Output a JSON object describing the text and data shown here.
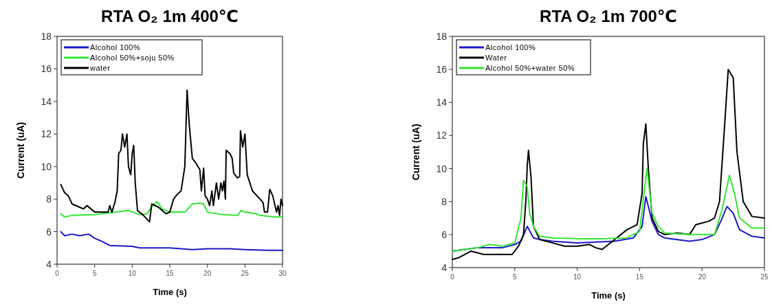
{
  "chart_data": [
    {
      "type": "line",
      "title": "RTA O₂ 1m 400℃",
      "xlabel": "Time (s)",
      "ylabel": "Current (uA)",
      "xlim": [
        0,
        30
      ],
      "xticks": [
        0,
        5,
        10,
        15,
        20,
        25,
        30
      ],
      "ylim": [
        4,
        18
      ],
      "yticks": [
        4,
        6,
        8,
        10,
        12,
        14,
        16,
        18
      ],
      "legend": "top left",
      "grid": false,
      "series": [
        {
          "name": "Alcohol 100%",
          "color": "#1818c8",
          "x": [
            0.5,
            1,
            2,
            3,
            4.2,
            5,
            6,
            7,
            10,
            11,
            15,
            18,
            20,
            23,
            25,
            28,
            30
          ],
          "values": [
            6.0,
            5.75,
            5.85,
            5.75,
            5.85,
            5.6,
            5.4,
            5.15,
            5.1,
            5.0,
            5.0,
            4.9,
            4.95,
            4.95,
            4.9,
            4.85,
            4.85
          ]
        },
        {
          "name": "Alcohol 50%+soju 50%",
          "color": "#33e633",
          "x": [
            0.5,
            1,
            2,
            5,
            9.5,
            11,
            12,
            12.5,
            13.3,
            14,
            15,
            17,
            18,
            19,
            19.5,
            20,
            22,
            24,
            24.5,
            25,
            26.5,
            27,
            29,
            30
          ],
          "values": [
            7.1,
            6.9,
            7.0,
            7.05,
            7.3,
            7.05,
            7.1,
            7.5,
            7.85,
            7.4,
            7.2,
            7.2,
            7.7,
            7.75,
            7.7,
            7.2,
            7.05,
            7.0,
            7.3,
            7.2,
            7.1,
            7.0,
            6.9,
            6.9
          ]
        },
        {
          "name": "water",
          "color": "#000000",
          "x": [
            0.5,
            1,
            1.5,
            2,
            3,
            3.5,
            4,
            4.5,
            5,
            6.8,
            7,
            7.3,
            7.7,
            8,
            8.2,
            8.5,
            8.7,
            9,
            9.3,
            9.5,
            9.8,
            10,
            10.2,
            10.4,
            10.7,
            11.5,
            12.3,
            12.6,
            13.5,
            14.5,
            15,
            15.5,
            16,
            16.5,
            17,
            17.3,
            17.6,
            18,
            18.5,
            19,
            19.2,
            19.5,
            19.7,
            20,
            20.3,
            20.6,
            20.8,
            21.2,
            21.5,
            21.8,
            22,
            22.2,
            22.4,
            22.5,
            23,
            23.3,
            23.5,
            24,
            24.3,
            24.4,
            24.7,
            25,
            25.3,
            26,
            27,
            27.4,
            27.6,
            28,
            28.3,
            28.7,
            29.2,
            29.4,
            29.6,
            29.8,
            30
          ],
          "values": [
            8.9,
            8.4,
            8.2,
            7.7,
            7.5,
            7.4,
            7.6,
            7.4,
            7.2,
            7.2,
            7.6,
            7.2,
            7.8,
            8.5,
            10.8,
            11.0,
            12.0,
            11.2,
            12.0,
            10.0,
            9.5,
            10.8,
            11.3,
            9.0,
            7.3,
            7.0,
            6.6,
            7.7,
            7.5,
            7.1,
            7.2,
            8.0,
            8.3,
            8.5,
            10.0,
            14.7,
            12.5,
            10.5,
            10.2,
            9.8,
            8.5,
            9.9,
            8.2,
            8.0,
            7.6,
            8.5,
            7.6,
            9.0,
            8.0,
            9.0,
            8.5,
            9.1,
            8.0,
            11.0,
            10.8,
            10.5,
            9.6,
            9.3,
            9.4,
            12.2,
            11.2,
            12.0,
            9.5,
            8.5,
            8.0,
            7.8,
            7.2,
            7.2,
            8.6,
            8.2,
            7.2,
            7.6,
            7.0,
            8.0,
            7.6
          ]
        }
      ]
    },
    {
      "type": "line",
      "title": "RTA O₂ 1m 700℃",
      "xlabel": "Time (s)",
      "ylabel": "Current (uA)",
      "xlim": [
        0,
        25
      ],
      "xticks": [
        0,
        5,
        10,
        15,
        20,
        25
      ],
      "ylim": [
        4,
        18
      ],
      "yticks": [
        4,
        6,
        8,
        10,
        12,
        14,
        16,
        18
      ],
      "legend": "top left",
      "grid": false,
      "series": [
        {
          "name": "Alcohol 100%",
          "color": "#1818c8",
          "x": [
            0,
            2,
            4,
            5,
            5.5,
            6,
            6.5,
            7,
            8,
            10,
            13,
            14.5,
            15.2,
            15.5,
            16,
            16.5,
            17,
            19,
            20,
            21,
            21.5,
            22,
            22.5,
            23,
            24,
            25
          ],
          "values": [
            5.0,
            5.2,
            5.2,
            5.4,
            5.6,
            6.5,
            5.8,
            5.7,
            5.6,
            5.5,
            5.6,
            5.8,
            6.5,
            8.3,
            6.8,
            6.0,
            5.8,
            5.6,
            5.7,
            6.0,
            6.8,
            7.7,
            7.3,
            6.3,
            5.9,
            5.8
          ]
        },
        {
          "name": "Water",
          "color": "#000000",
          "x": [
            0,
            0.5,
            1.5,
            2.5,
            3,
            4,
            4.8,
            5.3,
            5.7,
            5.9,
            6.0,
            6.1,
            6.3,
            6.5,
            7,
            8,
            9,
            10,
            11,
            11.5,
            12,
            13,
            14,
            14.8,
            15.2,
            15.3,
            15.5,
            15.7,
            16,
            16.5,
            17,
            18,
            19,
            19.5,
            20.5,
            21,
            21.4,
            21.8,
            22.1,
            22.5,
            22.8,
            23.3,
            24,
            25
          ],
          "values": [
            4.5,
            4.6,
            5.0,
            4.8,
            4.8,
            4.8,
            4.8,
            5.3,
            6.0,
            8.2,
            10.2,
            11.1,
            9.5,
            6.5,
            5.7,
            5.5,
            5.3,
            5.3,
            5.4,
            5.2,
            5.1,
            5.7,
            6.3,
            6.6,
            8.5,
            11.5,
            12.7,
            10.0,
            7.0,
            6.2,
            6.0,
            6.1,
            6.0,
            6.6,
            6.8,
            7.0,
            8.0,
            12.5,
            16.0,
            15.5,
            11.0,
            8.0,
            7.1,
            7.0
          ]
        },
        {
          "name": "Alcohol 50%+water 50%",
          "color": "#33e633",
          "x": [
            0,
            2,
            3,
            4,
            5,
            5.5,
            5.7,
            6.0,
            6.2,
            6.5,
            7,
            8,
            10,
            12,
            14,
            15,
            15.4,
            15.6,
            16,
            16.5,
            17,
            19,
            21,
            21.6,
            22.2,
            22.6,
            23,
            24,
            25
          ],
          "values": [
            5.0,
            5.2,
            5.4,
            5.3,
            5.5,
            7.0,
            9.3,
            8.9,
            7.3,
            6.5,
            5.9,
            5.8,
            5.75,
            5.75,
            5.8,
            6.2,
            8.8,
            10.0,
            7.3,
            6.5,
            6.1,
            6.0,
            6.0,
            7.5,
            9.6,
            8.5,
            7.0,
            6.4,
            6.4
          ]
        }
      ]
    }
  ]
}
